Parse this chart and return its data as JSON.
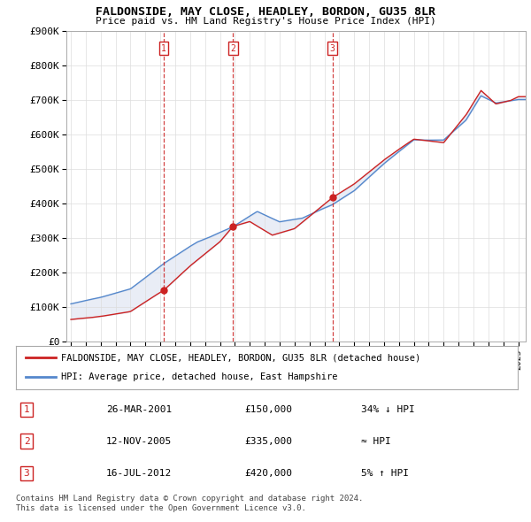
{
  "title": "FALDONSIDE, MAY CLOSE, HEADLEY, BORDON, GU35 8LR",
  "subtitle": "Price paid vs. HM Land Registry's House Price Index (HPI)",
  "ylim": [
    0,
    900000
  ],
  "yticks": [
    0,
    100000,
    200000,
    300000,
    400000,
    500000,
    600000,
    700000,
    800000,
    900000
  ],
  "ytick_labels": [
    "£0",
    "£100K",
    "£200K",
    "£300K",
    "£400K",
    "£500K",
    "£600K",
    "£700K",
    "£800K",
    "£900K"
  ],
  "xlim_start": 1994.7,
  "xlim_end": 2025.5,
  "hpi_color": "#5588cc",
  "hpi_fill_color": "#aabbdd",
  "price_color": "#cc2222",
  "sale_dates": [
    2001.23,
    2005.87,
    2012.54
  ],
  "sale_prices": [
    150000,
    335000,
    420000
  ],
  "sale_labels": [
    "1",
    "2",
    "3"
  ],
  "legend_label_price": "FALDONSIDE, MAY CLOSE, HEADLEY, BORDON, GU35 8LR (detached house)",
  "legend_label_hpi": "HPI: Average price, detached house, East Hampshire",
  "table_rows": [
    {
      "num": "1",
      "date": "26-MAR-2001",
      "price": "£150,000",
      "hpi": "34% ↓ HPI"
    },
    {
      "num": "2",
      "date": "12-NOV-2005",
      "price": "£335,000",
      "hpi": "≈ HPI"
    },
    {
      "num": "3",
      "date": "16-JUL-2012",
      "price": "£420,000",
      "hpi": "5% ↑ HPI"
    }
  ],
  "footnote": "Contains HM Land Registry data © Crown copyright and database right 2024.\nThis data is licensed under the Open Government Licence v3.0.",
  "background_color": "#ffffff",
  "plot_bg_color": "#ffffff",
  "grid_color": "#dddddd"
}
